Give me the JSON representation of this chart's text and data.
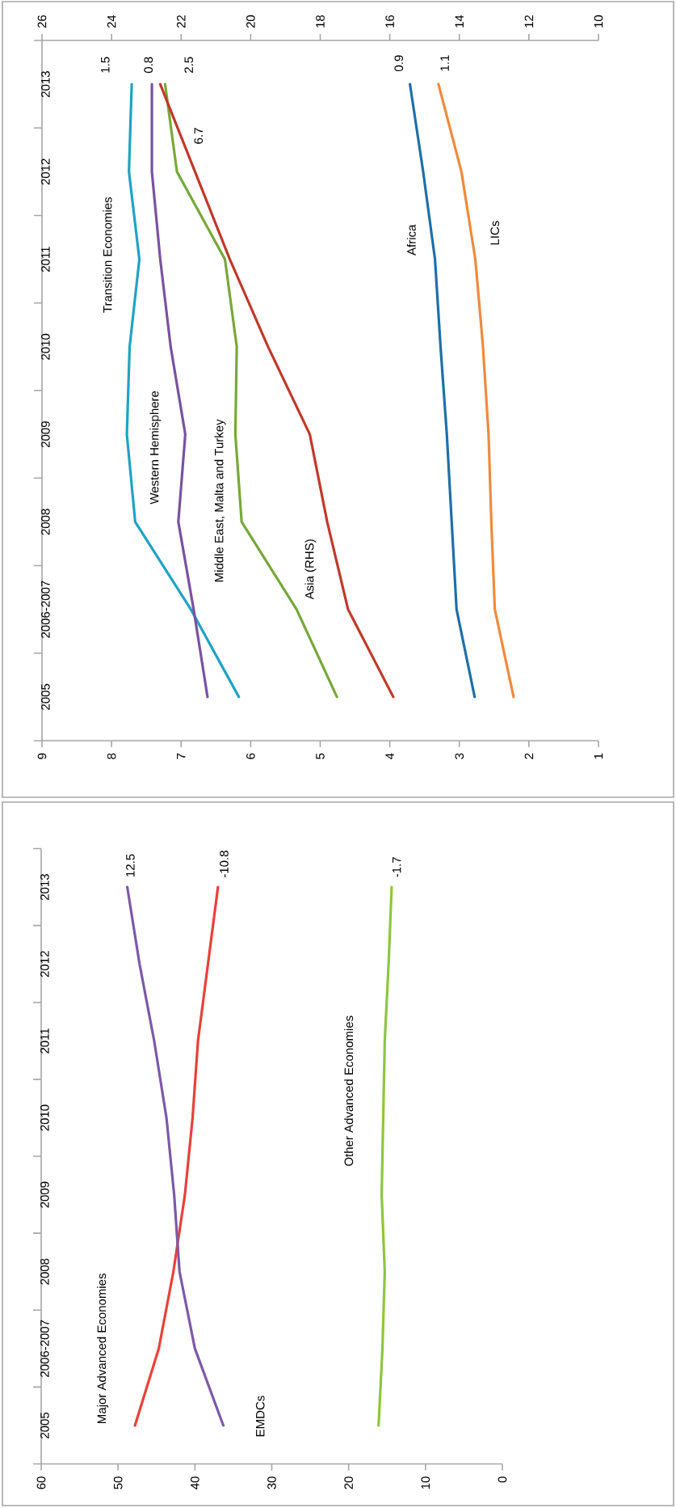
{
  "chart_data": [
    {
      "type": "line",
      "orientation": "horizontal",
      "categories": [
        "2013",
        "2012",
        "2011",
        "2010",
        "2009",
        "2008",
        "2006-2007",
        "2005"
      ],
      "series": [
        {
          "name": "Transition Economies",
          "color": "#1fa3c4",
          "values": [
            7.71,
            7.75,
            7.6,
            7.74,
            7.78,
            7.66,
            6.86,
            6.17
          ]
        },
        {
          "name": "Western Hemisphere",
          "color": "#7a52a0",
          "values": [
            7.42,
            7.42,
            7.3,
            7.15,
            6.94,
            7.04,
            6.82,
            6.62
          ]
        },
        {
          "name": "Middle East, Malta and Turkey",
          "color": "#77a83a",
          "values": [
            7.23,
            7.06,
            6.37,
            6.2,
            6.22,
            6.13,
            5.34,
            4.76
          ]
        },
        {
          "name": "Asia (RHS)",
          "color": "#c0392b",
          "axis": "x2",
          "values": [
            22.6,
            21.6,
            20.6,
            19.5,
            18.3,
            17.8,
            17.2,
            15.9
          ]
        },
        {
          "name": "Africa",
          "color": "#1f6fa8",
          "values": [
            3.71,
            3.52,
            3.35,
            3.27,
            3.18,
            3.11,
            3.04,
            2.78
          ]
        },
        {
          "name": "LICs",
          "color": "#f08a3c",
          "values": [
            3.3,
            2.97,
            2.77,
            2.66,
            2.58,
            2.54,
            2.49,
            2.22
          ]
        }
      ],
      "xlim": [
        9,
        1
      ],
      "xticks": [
        1,
        2,
        3,
        4,
        5,
        6,
        7,
        8,
        9
      ],
      "x2lim": [
        26,
        10
      ],
      "x2ticks": [
        10,
        12,
        14,
        16,
        18,
        20,
        22,
        24,
        26
      ],
      "annotations": [
        "1.5",
        "0.8",
        "2.5",
        "6.7",
        "0.9",
        "1.1"
      ]
    },
    {
      "type": "line",
      "orientation": "horizontal",
      "categories": [
        "2013",
        "2012",
        "2011",
        "2010",
        "2009",
        "2008",
        "2006-2007",
        "2005"
      ],
      "series": [
        {
          "name": "Major Advanced Economies",
          "color": "#e8413a",
          "values": [
            37.0,
            38.3,
            39.6,
            40.3,
            41.3,
            42.8,
            44.7,
            47.8
          ]
        },
        {
          "name": "EMDCs",
          "color": "#7b5aa6",
          "values": [
            48.8,
            47.2,
            45.3,
            43.7,
            42.7,
            42.0,
            40.0,
            36.3
          ]
        },
        {
          "name": "Other Advanced Economies",
          "color": "#8dc63f",
          "values": [
            14.4,
            14.8,
            15.3,
            15.5,
            15.7,
            15.3,
            15.6,
            16.1
          ]
        }
      ],
      "xlim": [
        60,
        0
      ],
      "xticks": [
        0,
        10,
        20,
        30,
        40,
        50,
        60
      ],
      "annotations": [
        "12.5",
        "-10.8",
        "-1.7"
      ]
    }
  ]
}
